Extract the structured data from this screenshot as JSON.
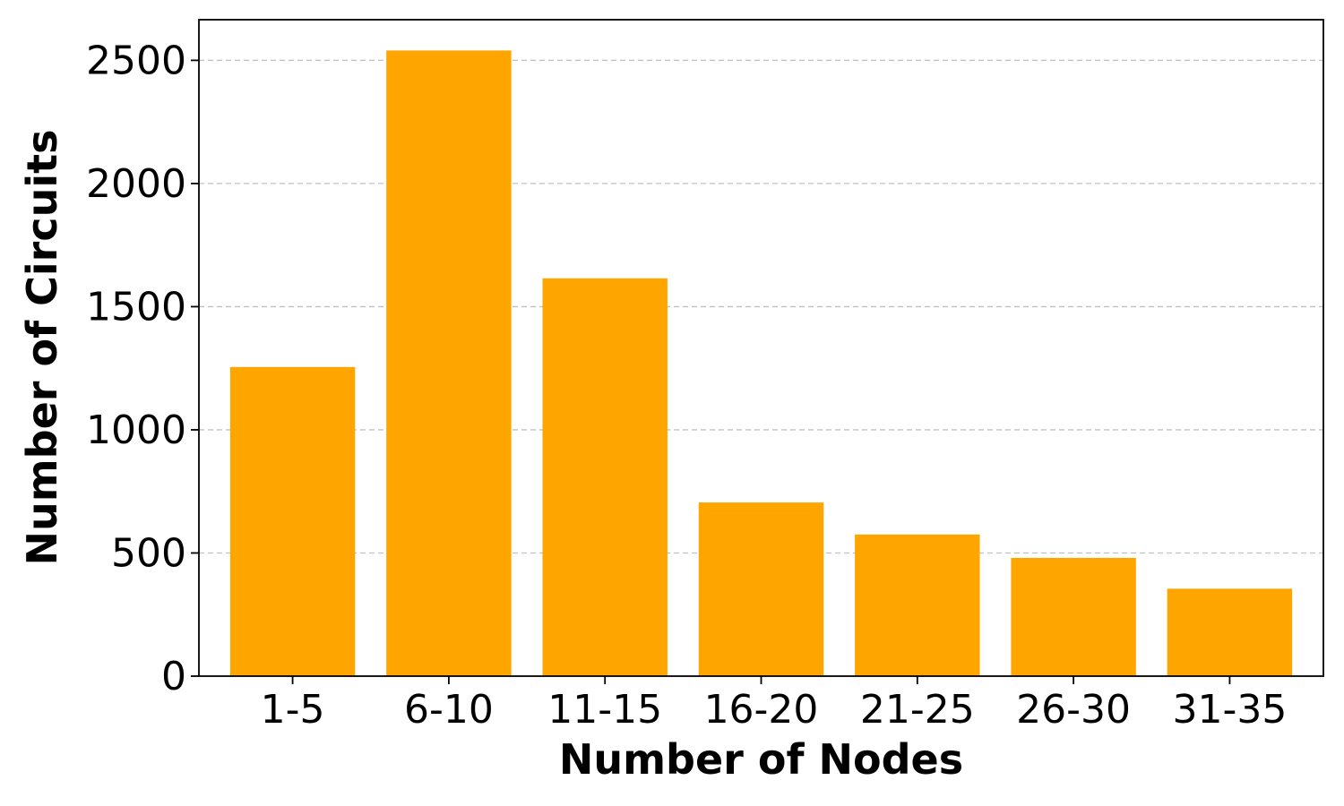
{
  "chart_data": {
    "type": "bar",
    "title": "",
    "xlabel": "Number of Nodes",
    "ylabel": "Number of Circuits",
    "categories": [
      "1-5",
      "6-10",
      "11-15",
      "16-20",
      "21-25",
      "26-30",
      "31-35"
    ],
    "values": [
      1255,
      2540,
      1615,
      705,
      575,
      480,
      355
    ],
    "ylim": [
      0,
      2665
    ],
    "yticks": [
      0,
      500,
      1000,
      1500,
      2000,
      2500
    ],
    "ytick_labels": [
      "0",
      "500",
      "1000",
      "1500",
      "2000",
      "2500"
    ],
    "grid": "y-dashed",
    "legend": "none",
    "bar_color": "#FFA500",
    "grid_color": "#c0c0c0",
    "axis_color": "#000000"
  }
}
